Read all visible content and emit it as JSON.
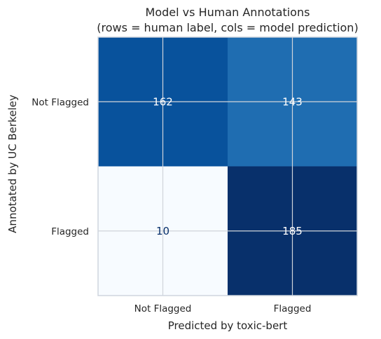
{
  "chart_data": {
    "type": "heatmap",
    "title": "Model vs Human Annotations",
    "subtitle": "(rows = human label, cols = model prediction)",
    "xlabel": "Predicted by toxic-bert",
    "ylabel": "Annotated by UC Berkeley",
    "x_categories": [
      "Not Flagged",
      "Flagged"
    ],
    "y_categories": [
      "Not Flagged",
      "Flagged"
    ],
    "values": [
      [
        162,
        143
      ],
      [
        10,
        185
      ]
    ],
    "colormap": "Blues",
    "grid": true,
    "colors": {
      "cell_0_0": "#08529c",
      "cell_0_1": "#1f6db1",
      "cell_1_0": "#f7fbff",
      "cell_1_1": "#08306b",
      "text_on_dark": "#ffffff",
      "text_on_light": "#08306b",
      "grid": "#d0d4da",
      "frame": "#cfd5de"
    }
  }
}
